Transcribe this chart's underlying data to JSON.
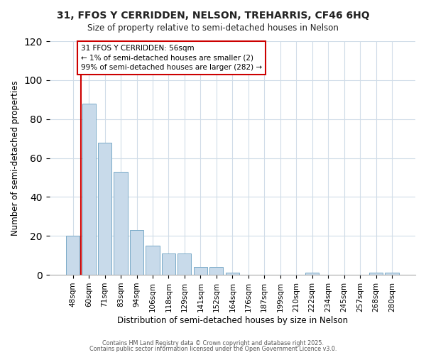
{
  "title1": "31, FFOS Y CERRIDDEN, NELSON, TREHARRIS, CF46 6HQ",
  "title2": "Size of property relative to semi-detached houses in Nelson",
  "xlabel": "Distribution of semi-detached houses by size in Nelson",
  "ylabel": "Number of semi-detached properties",
  "annotation_title": "31 FFOS Y CERRIDDEN: 56sqm",
  "annotation_line1": "← 1% of semi-detached houses are smaller (2)",
  "annotation_line2": "99% of semi-detached houses are larger (282) →",
  "categories": [
    "48sqm",
    "60sqm",
    "71sqm",
    "83sqm",
    "94sqm",
    "106sqm",
    "118sqm",
    "129sqm",
    "141sqm",
    "152sqm",
    "164sqm",
    "176sqm",
    "187sqm",
    "199sqm",
    "210sqm",
    "222sqm",
    "234sqm",
    "245sqm",
    "257sqm",
    "268sqm",
    "280sqm"
  ],
  "values": [
    20,
    88,
    68,
    53,
    23,
    15,
    11,
    11,
    4,
    4,
    1,
    0,
    0,
    0,
    0,
    1,
    0,
    0,
    0,
    1,
    1
  ],
  "bar_color": "#c8daea",
  "bar_edge_color": "#7aaac8",
  "vline_color": "#cc0000",
  "annotation_box_edge_color": "#cc0000",
  "background_color": "#ffffff",
  "plot_bg_color": "#ffffff",
  "grid_color": "#d0dce8",
  "ylim": [
    0,
    120
  ],
  "yticks": [
    0,
    20,
    40,
    60,
    80,
    100,
    120
  ],
  "footer1": "Contains HM Land Registry data © Crown copyright and database right 2025.",
  "footer2": "Contains public sector information licensed under the Open Government Licence v3.0."
}
